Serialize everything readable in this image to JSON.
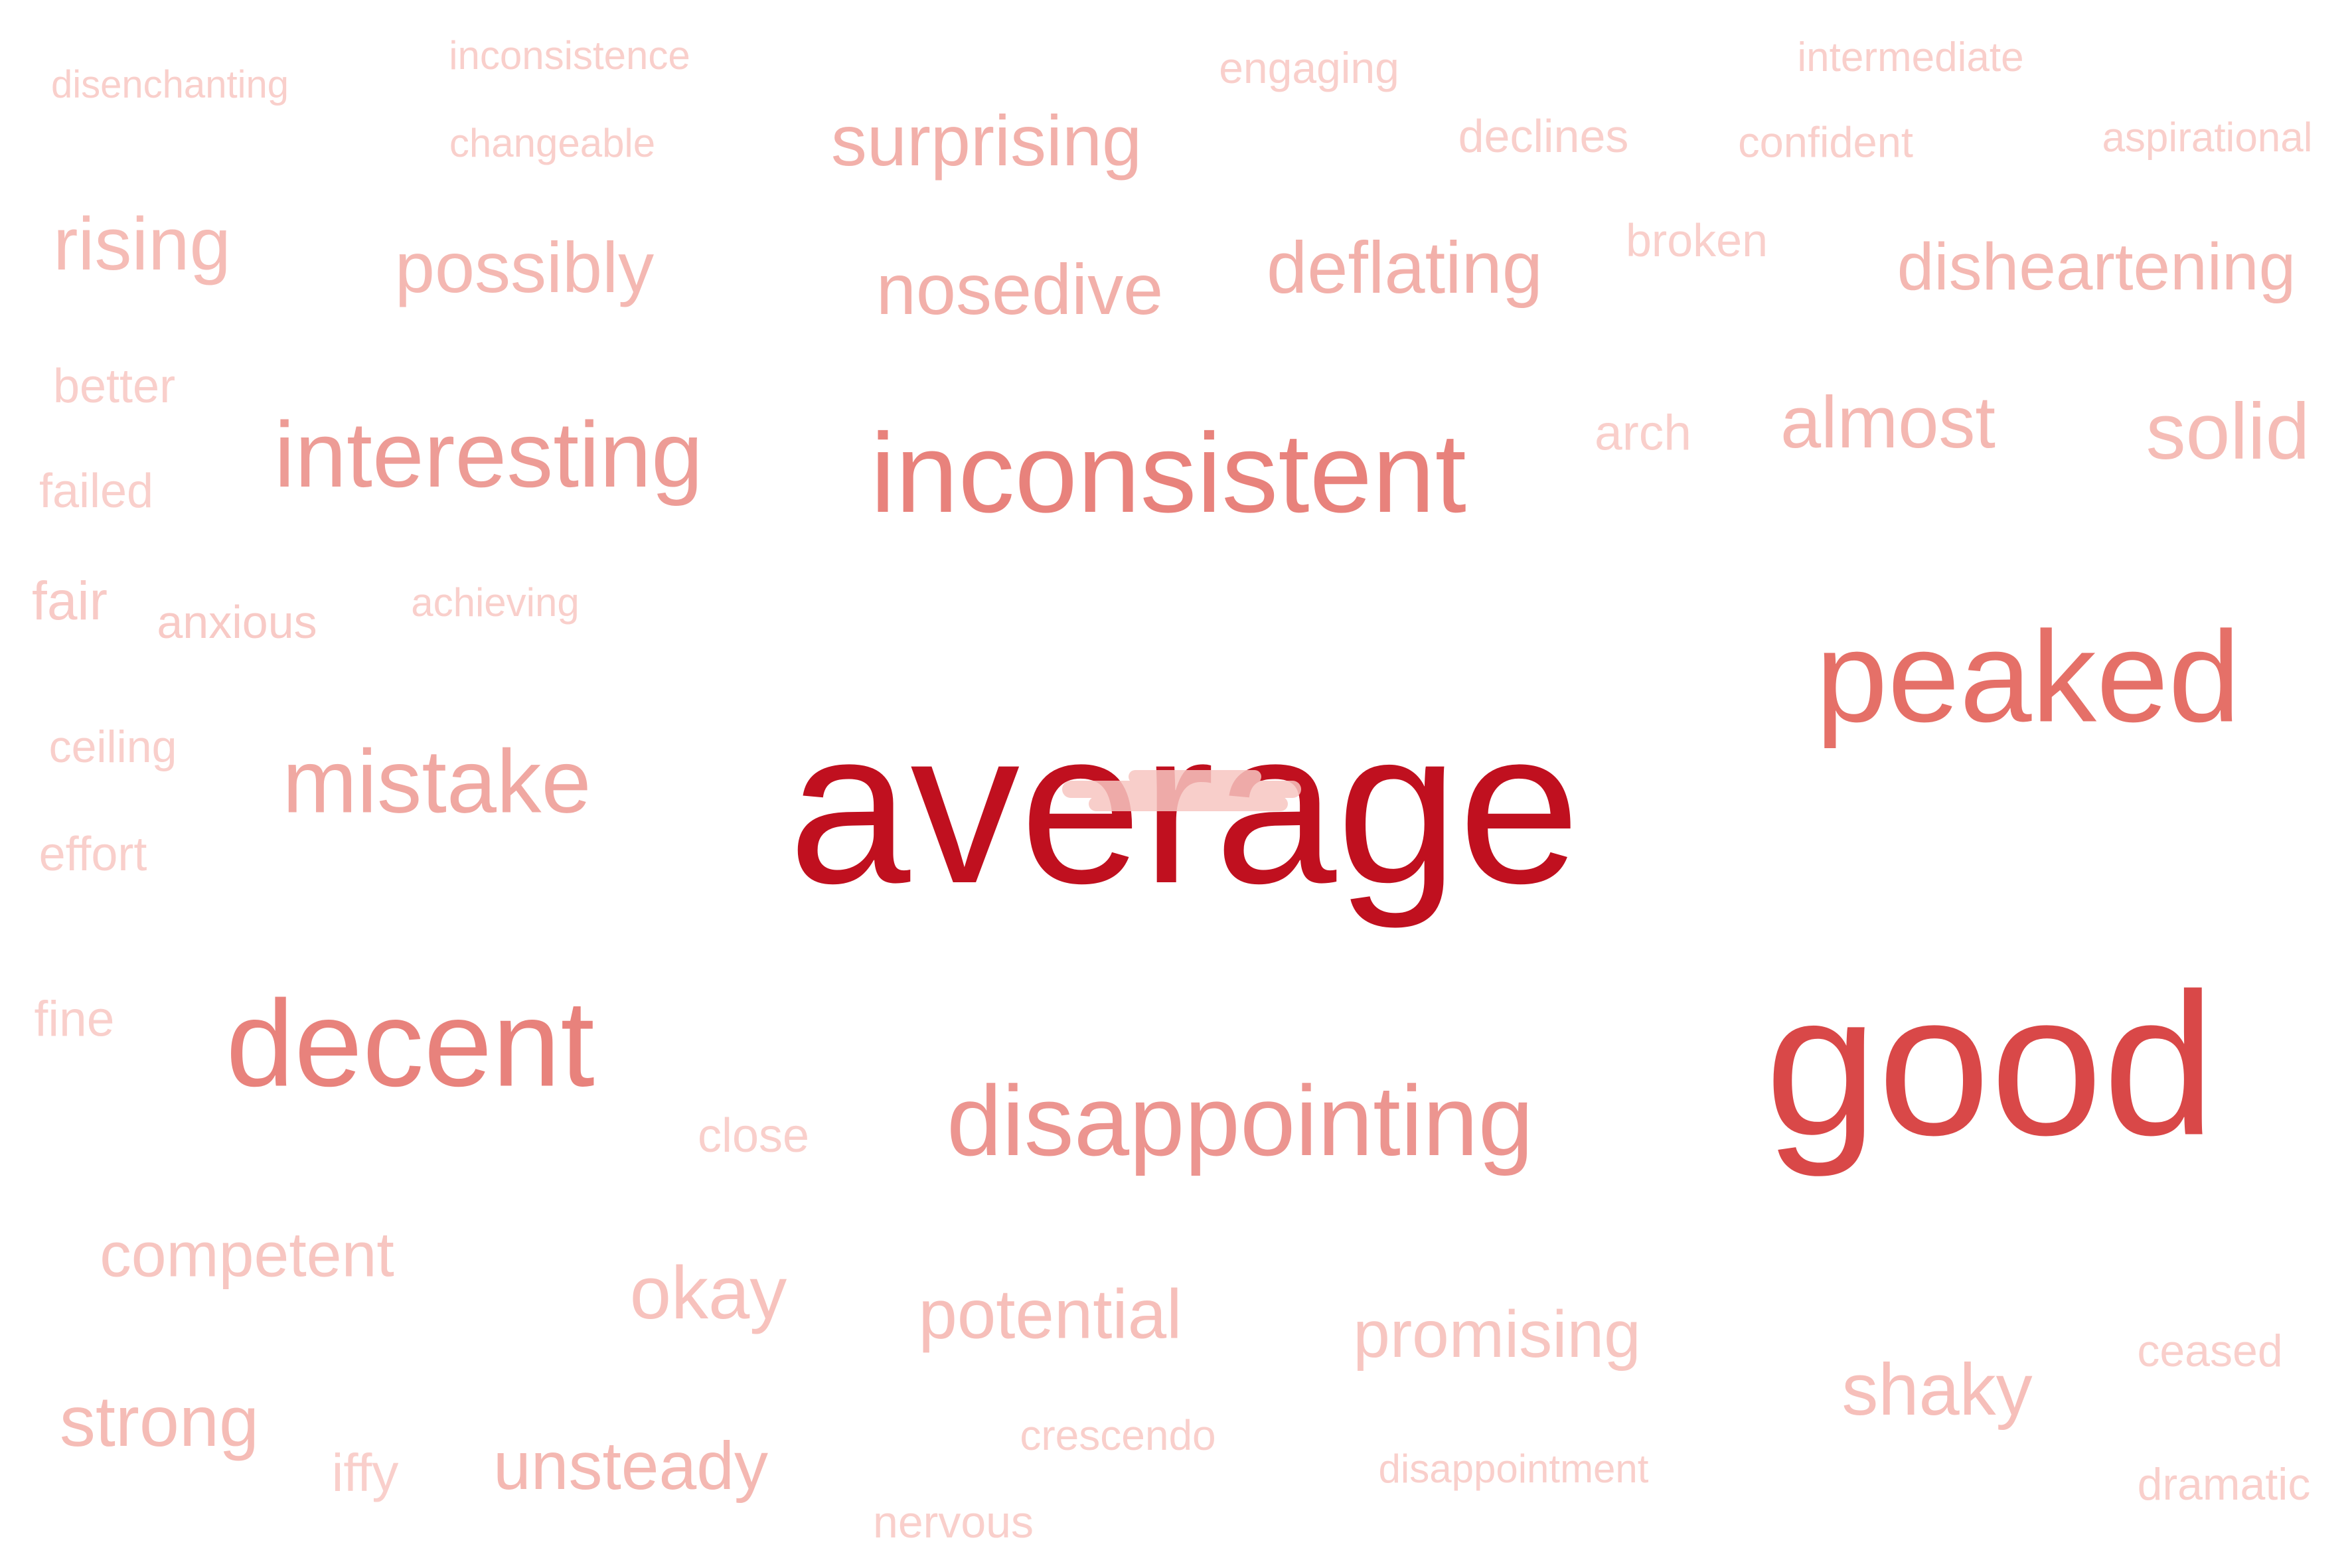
{
  "words": [
    {
      "text": "average",
      "color": "#c0101f"
    },
    {
      "text": "good",
      "color": "#d94848"
    },
    {
      "text": "peaked",
      "color": "#e57068"
    },
    {
      "text": "inconsistent",
      "color": "#e8827c"
    },
    {
      "text": "decent",
      "color": "#e8827c"
    },
    {
      "text": "disappointing",
      "color": "#ec9590"
    },
    {
      "text": "interesting",
      "color": "#ed9c96"
    },
    {
      "text": "mistake",
      "color": "#f0a8a2"
    },
    {
      "text": "deflating",
      "color": "#f2b0aa"
    },
    {
      "text": "nosedive",
      "color": "#f2b0aa"
    },
    {
      "text": "surprising",
      "color": "#f2b0aa"
    },
    {
      "text": "possibly",
      "color": "#f4b8b2"
    },
    {
      "text": "disheartening",
      "color": "#f4b8b2"
    },
    {
      "text": "almost",
      "color": "#f4b8b2"
    },
    {
      "text": "solid",
      "color": "#f5bcb6"
    },
    {
      "text": "rising",
      "color": "#f5bcb6"
    },
    {
      "text": "strong",
      "color": "#f5bcb6"
    },
    {
      "text": "unsteady",
      "color": "#f4b8b2"
    },
    {
      "text": "okay",
      "color": "#f7c2bd"
    },
    {
      "text": "potential",
      "color": "#f6bfba"
    },
    {
      "text": "promising",
      "color": "#f7c6c1"
    },
    {
      "text": "competent",
      "color": "#f7c6c1"
    },
    {
      "text": "shaky",
      "color": "#f6bfba"
    },
    {
      "text": "fair",
      "color": "#f8cac6"
    },
    {
      "text": "anxious",
      "color": "#f8cac6"
    },
    {
      "text": "better",
      "color": "#f9cfcb"
    },
    {
      "text": "failed",
      "color": "#f9cfcb"
    },
    {
      "text": "arch",
      "color": "#f9cfcb"
    },
    {
      "text": "effort",
      "color": "#f9cfcb"
    },
    {
      "text": "ceiling",
      "color": "#f9cfcb"
    },
    {
      "text": "fine",
      "color": "#f9cfcb"
    },
    {
      "text": "close",
      "color": "#f9cfcb"
    },
    {
      "text": "iffy",
      "color": "#f9cfcb"
    },
    {
      "text": "nervous",
      "color": "#f9cfcb"
    },
    {
      "text": "crescendo",
      "color": "#f9cfcb"
    },
    {
      "text": "disappointment",
      "color": "#f9cfcb"
    },
    {
      "text": "ceased",
      "color": "#f9cfcb"
    },
    {
      "text": "dramatic",
      "color": "#f9cfcb"
    },
    {
      "text": "broken",
      "color": "#f9cfcb"
    },
    {
      "text": "declines",
      "color": "#f9cfcb"
    },
    {
      "text": "confident",
      "color": "#f9cfcb"
    },
    {
      "text": "aspirational",
      "color": "#f9cfcb"
    },
    {
      "text": "intermediate",
      "color": "#f9cfcb"
    },
    {
      "text": "engaging",
      "color": "#f9cfcb"
    },
    {
      "text": "changeable",
      "color": "#f9cfcb"
    },
    {
      "text": "inconsistence",
      "color": "#f9cfcb"
    },
    {
      "text": "disenchanting",
      "color": "#f9cfcb"
    },
    {
      "text": "achieving",
      "color": "#f9cfcb"
    }
  ]
}
